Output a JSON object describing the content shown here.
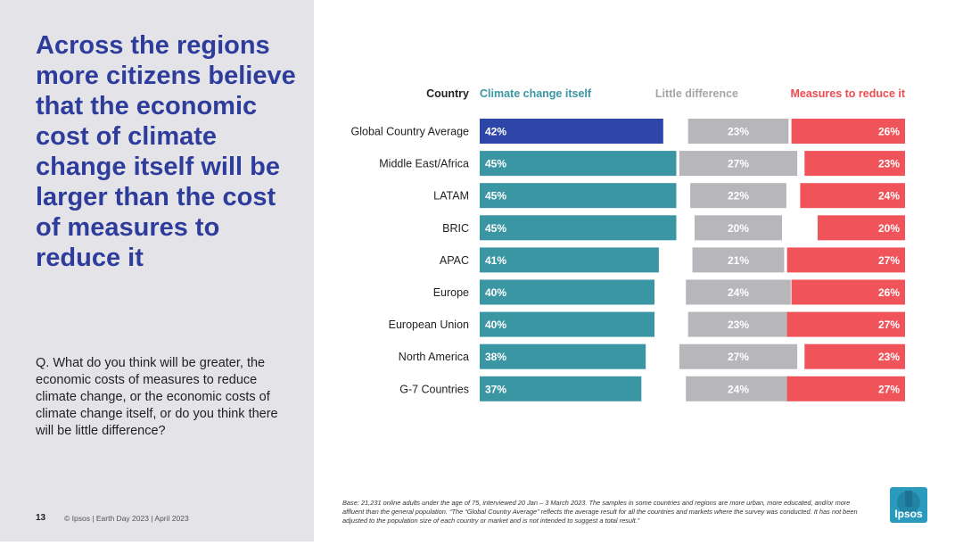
{
  "headline": "Across the regions more citizens believe that the economic cost of climate change itself will be larger than the cost of measures to reduce it",
  "question": "Q. What do you think will be greater, the economic costs of measures to reduce climate change, or the economic costs of climate change itself, or do you think there will be little difference?",
  "footer": {
    "page_number": "13",
    "credit": "© Ipsos | Earth Day 2023 | April 2023"
  },
  "base_note": "Base: 21,231 online adults under the age of 75, interviewed 20 Jan – 3 March 2023. The samples in some countries and regions are more urban, more educated, and/or more affluent than the general population. “The “Global Country Average” reflects the average result for all the countries and markets where the survey was conducted. It has not been adjusted to the population size of each country or market and is not intended to suggest a total result.”",
  "logo_text": "Ipsos",
  "colors": {
    "climate": "#3a96a2",
    "climate_highlight": "#2e46a8",
    "little": "#b7b7bb",
    "measures": "#f0545a",
    "climate_header": "#3a96a2",
    "little_header": "#a5a5a8",
    "measures_header": "#ee4b50",
    "logo": "#2b9bbd"
  },
  "chart_data": {
    "type": "bar",
    "orientation": "horizontal",
    "stacking": "three separate columns",
    "category_header": "Country",
    "categories": [
      "Global Country Average",
      "Middle East/Africa",
      "LATAM",
      "BRIC",
      "APAC",
      "Europe",
      "European Union",
      "North America",
      "G-7 Countries"
    ],
    "series": [
      {
        "name": "Climate change itself",
        "values": [
          42,
          45,
          45,
          45,
          41,
          40,
          40,
          38,
          37
        ],
        "labels": [
          "42%",
          "45%",
          "45%",
          "45%",
          "41%",
          "40%",
          "40%",
          "38%",
          "37%"
        ]
      },
      {
        "name": "Little difference",
        "values": [
          23,
          27,
          22,
          20,
          21,
          24,
          23,
          27,
          24
        ],
        "labels": [
          "23%",
          "27%",
          "22%",
          "20%",
          "21%",
          "24%",
          "23%",
          "27%",
          "24%"
        ]
      },
      {
        "name": "Measures to reduce it",
        "values": [
          26,
          23,
          24,
          20,
          27,
          26,
          27,
          23,
          27
        ],
        "labels": [
          "26%",
          "23%",
          "24%",
          "20%",
          "27%",
          "26%",
          "27%",
          "23%",
          "27%"
        ]
      }
    ],
    "highlighted_category": "Global Country Average",
    "unit": "%"
  }
}
